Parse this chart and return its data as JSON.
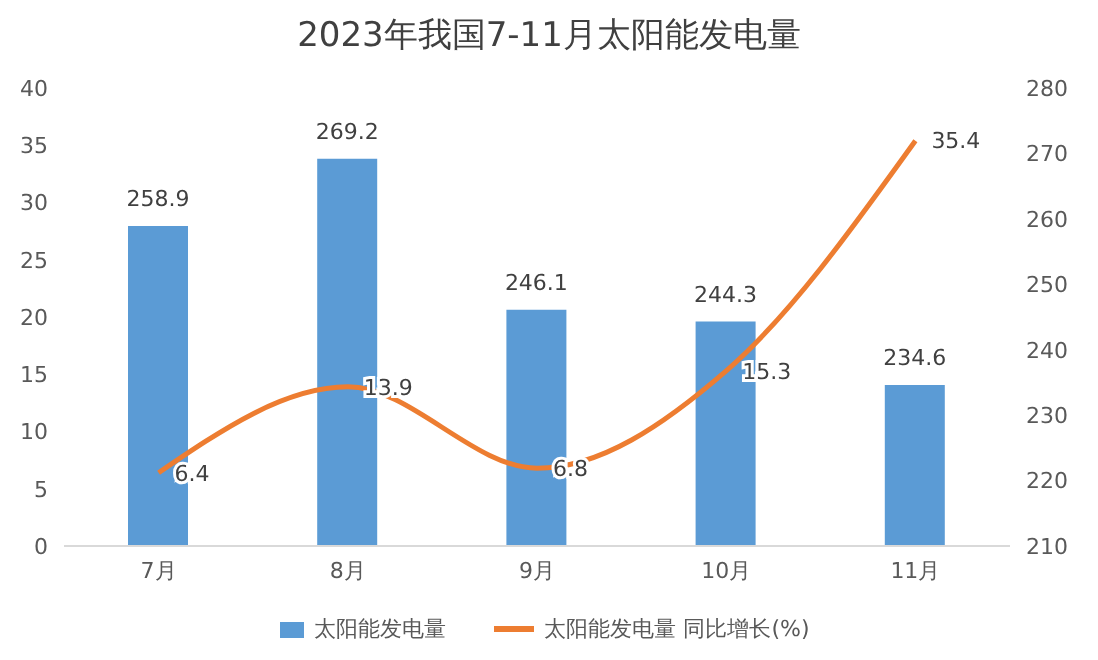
{
  "chart_data": {
    "type": "bar",
    "title": "2023年我国7-11月太阳能发电量",
    "categories": [
      "7月",
      "8月",
      "9月",
      "10月",
      "11月"
    ],
    "series": [
      {
        "name": "太阳能发电量",
        "color": "#5b9bd5",
        "axis": "y2",
        "values": [
          258.9,
          269.2,
          246.1,
          244.3,
          234.6
        ]
      },
      {
        "name": "太阳能发电量 同比增长(%)",
        "type": "line",
        "color": "#ed7d31",
        "axis": "y",
        "values": [
          6.4,
          13.9,
          6.8,
          15.3,
          35.4
        ]
      }
    ],
    "ylim": [
      0,
      40
    ],
    "yticks": [
      0,
      5,
      10,
      15,
      20,
      25,
      30,
      35,
      40
    ],
    "y2lim": [
      210,
      280
    ],
    "y2ticks": [
      210,
      220,
      230,
      240,
      250,
      260,
      270,
      280
    ],
    "data_labels": true,
    "grid": false,
    "legend": "bottom",
    "marker": "none",
    "line_style": "solid"
  }
}
